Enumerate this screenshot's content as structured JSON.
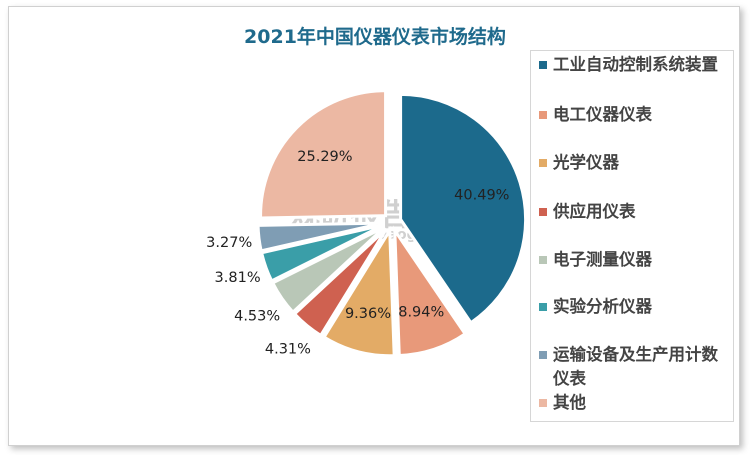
{
  "chart_data": {
    "type": "pie",
    "title": "2021年中国仪器仪表市场结构",
    "legend_position": "right",
    "series": [
      {
        "name": "工业自动控制系统装置",
        "value": 40.49,
        "label": "40.49%",
        "color": "#1c6a8c"
      },
      {
        "name": "电工仪器仪表",
        "value": 8.94,
        "label": "8.94%",
        "color": "#e8997a"
      },
      {
        "name": "光学仪器",
        "value": 9.36,
        "label": "9.36%",
        "color": "#e3ab66"
      },
      {
        "name": "供应用仪表",
        "value": 4.31,
        "label": "4.31%",
        "color": "#cf6150"
      },
      {
        "name": "电子测量仪器",
        "value": 4.53,
        "label": "4.53%",
        "color": "#b9c7b7"
      },
      {
        "name": "实验分析仪器",
        "value": 3.81,
        "label": "3.81%",
        "color": "#3a9ea8"
      },
      {
        "name": "运输设备及生产用计数仪表",
        "value": 3.27,
        "label": "3.27%",
        "color": "#7f9db4"
      },
      {
        "name": "其他",
        "value": 25.29,
        "label": "25.29%",
        "color": "#ecb8a3"
      }
    ]
  },
  "watermark": {
    "name": "观研报告网",
    "url": "chinabaogao.com"
  }
}
